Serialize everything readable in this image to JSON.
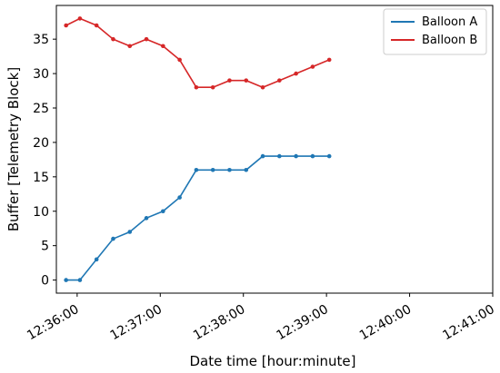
{
  "chart_data": {
    "type": "line",
    "title": "",
    "xlabel": "Date time [hour:minute]",
    "ylabel": "Buffer [Telemetry Block]",
    "x_ticks": [
      "12:36:00",
      "12:37:00",
      "12:38:00",
      "12:39:00",
      "12:40:00",
      "12:41:00"
    ],
    "y_ticks": [
      0,
      5,
      10,
      15,
      20,
      25,
      30,
      35
    ],
    "xlim": [
      "12:35:45",
      "12:41:00"
    ],
    "ylim": [
      -1.9,
      39.9
    ],
    "grid": false,
    "legend_position": "top-right",
    "x": [
      "12:35:50",
      "12:36:00",
      "12:36:10",
      "12:36:20",
      "12:36:30",
      "12:36:40",
      "12:36:50",
      "12:37:00",
      "12:37:10",
      "12:37:20",
      "12:37:30",
      "12:37:40",
      "12:37:50",
      "12:38:00",
      "12:38:10",
      "12:38:20",
      "12:38:30",
      "12:38:40",
      "12:38:50",
      "12:39:00",
      "12:39:10",
      "12:39:20",
      "12:39:30",
      "12:39:40",
      "12:39:50",
      "12:40:00",
      "12:40:10",
      "12:40:20",
      "12:40:30",
      "12:40:40",
      "12:40:50",
      "12:41:00"
    ],
    "series": [
      {
        "name": "Balloon A",
        "color": "#1f77b4",
        "points": [
          [
            "12:35:52",
            0
          ],
          [
            "12:36:02",
            0
          ],
          [
            "12:36:14",
            3
          ],
          [
            "12:36:26",
            6
          ],
          [
            "12:36:38",
            7
          ],
          [
            "12:36:50",
            9
          ],
          [
            "12:37:02",
            10
          ],
          [
            "12:37:14",
            12
          ],
          [
            "12:37:26",
            16
          ],
          [
            "12:37:38",
            16
          ],
          [
            "12:37:50",
            16
          ],
          [
            "12:38:02",
            16
          ],
          [
            "12:38:14",
            18
          ],
          [
            "12:38:26",
            18
          ],
          [
            "12:38:38",
            18
          ],
          [
            "12:38:50",
            18
          ],
          [
            "12:39:02",
            18
          ]
        ]
      },
      {
        "name": "Balloon B",
        "color": "#d62728",
        "points": [
          [
            "12:35:52",
            37
          ],
          [
            "12:36:02",
            38
          ],
          [
            "12:36:14",
            37
          ],
          [
            "12:36:26",
            35
          ],
          [
            "12:36:38",
            34
          ],
          [
            "12:36:50",
            35
          ],
          [
            "12:37:02",
            34
          ],
          [
            "12:37:14",
            32
          ],
          [
            "12:37:26",
            28
          ],
          [
            "12:37:38",
            28
          ],
          [
            "12:37:50",
            29
          ],
          [
            "12:38:02",
            29
          ],
          [
            "12:38:14",
            28
          ],
          [
            "12:38:26",
            29
          ],
          [
            "12:38:38",
            30
          ],
          [
            "12:38:50",
            31
          ],
          [
            "12:39:02",
            32
          ]
        ]
      }
    ]
  }
}
